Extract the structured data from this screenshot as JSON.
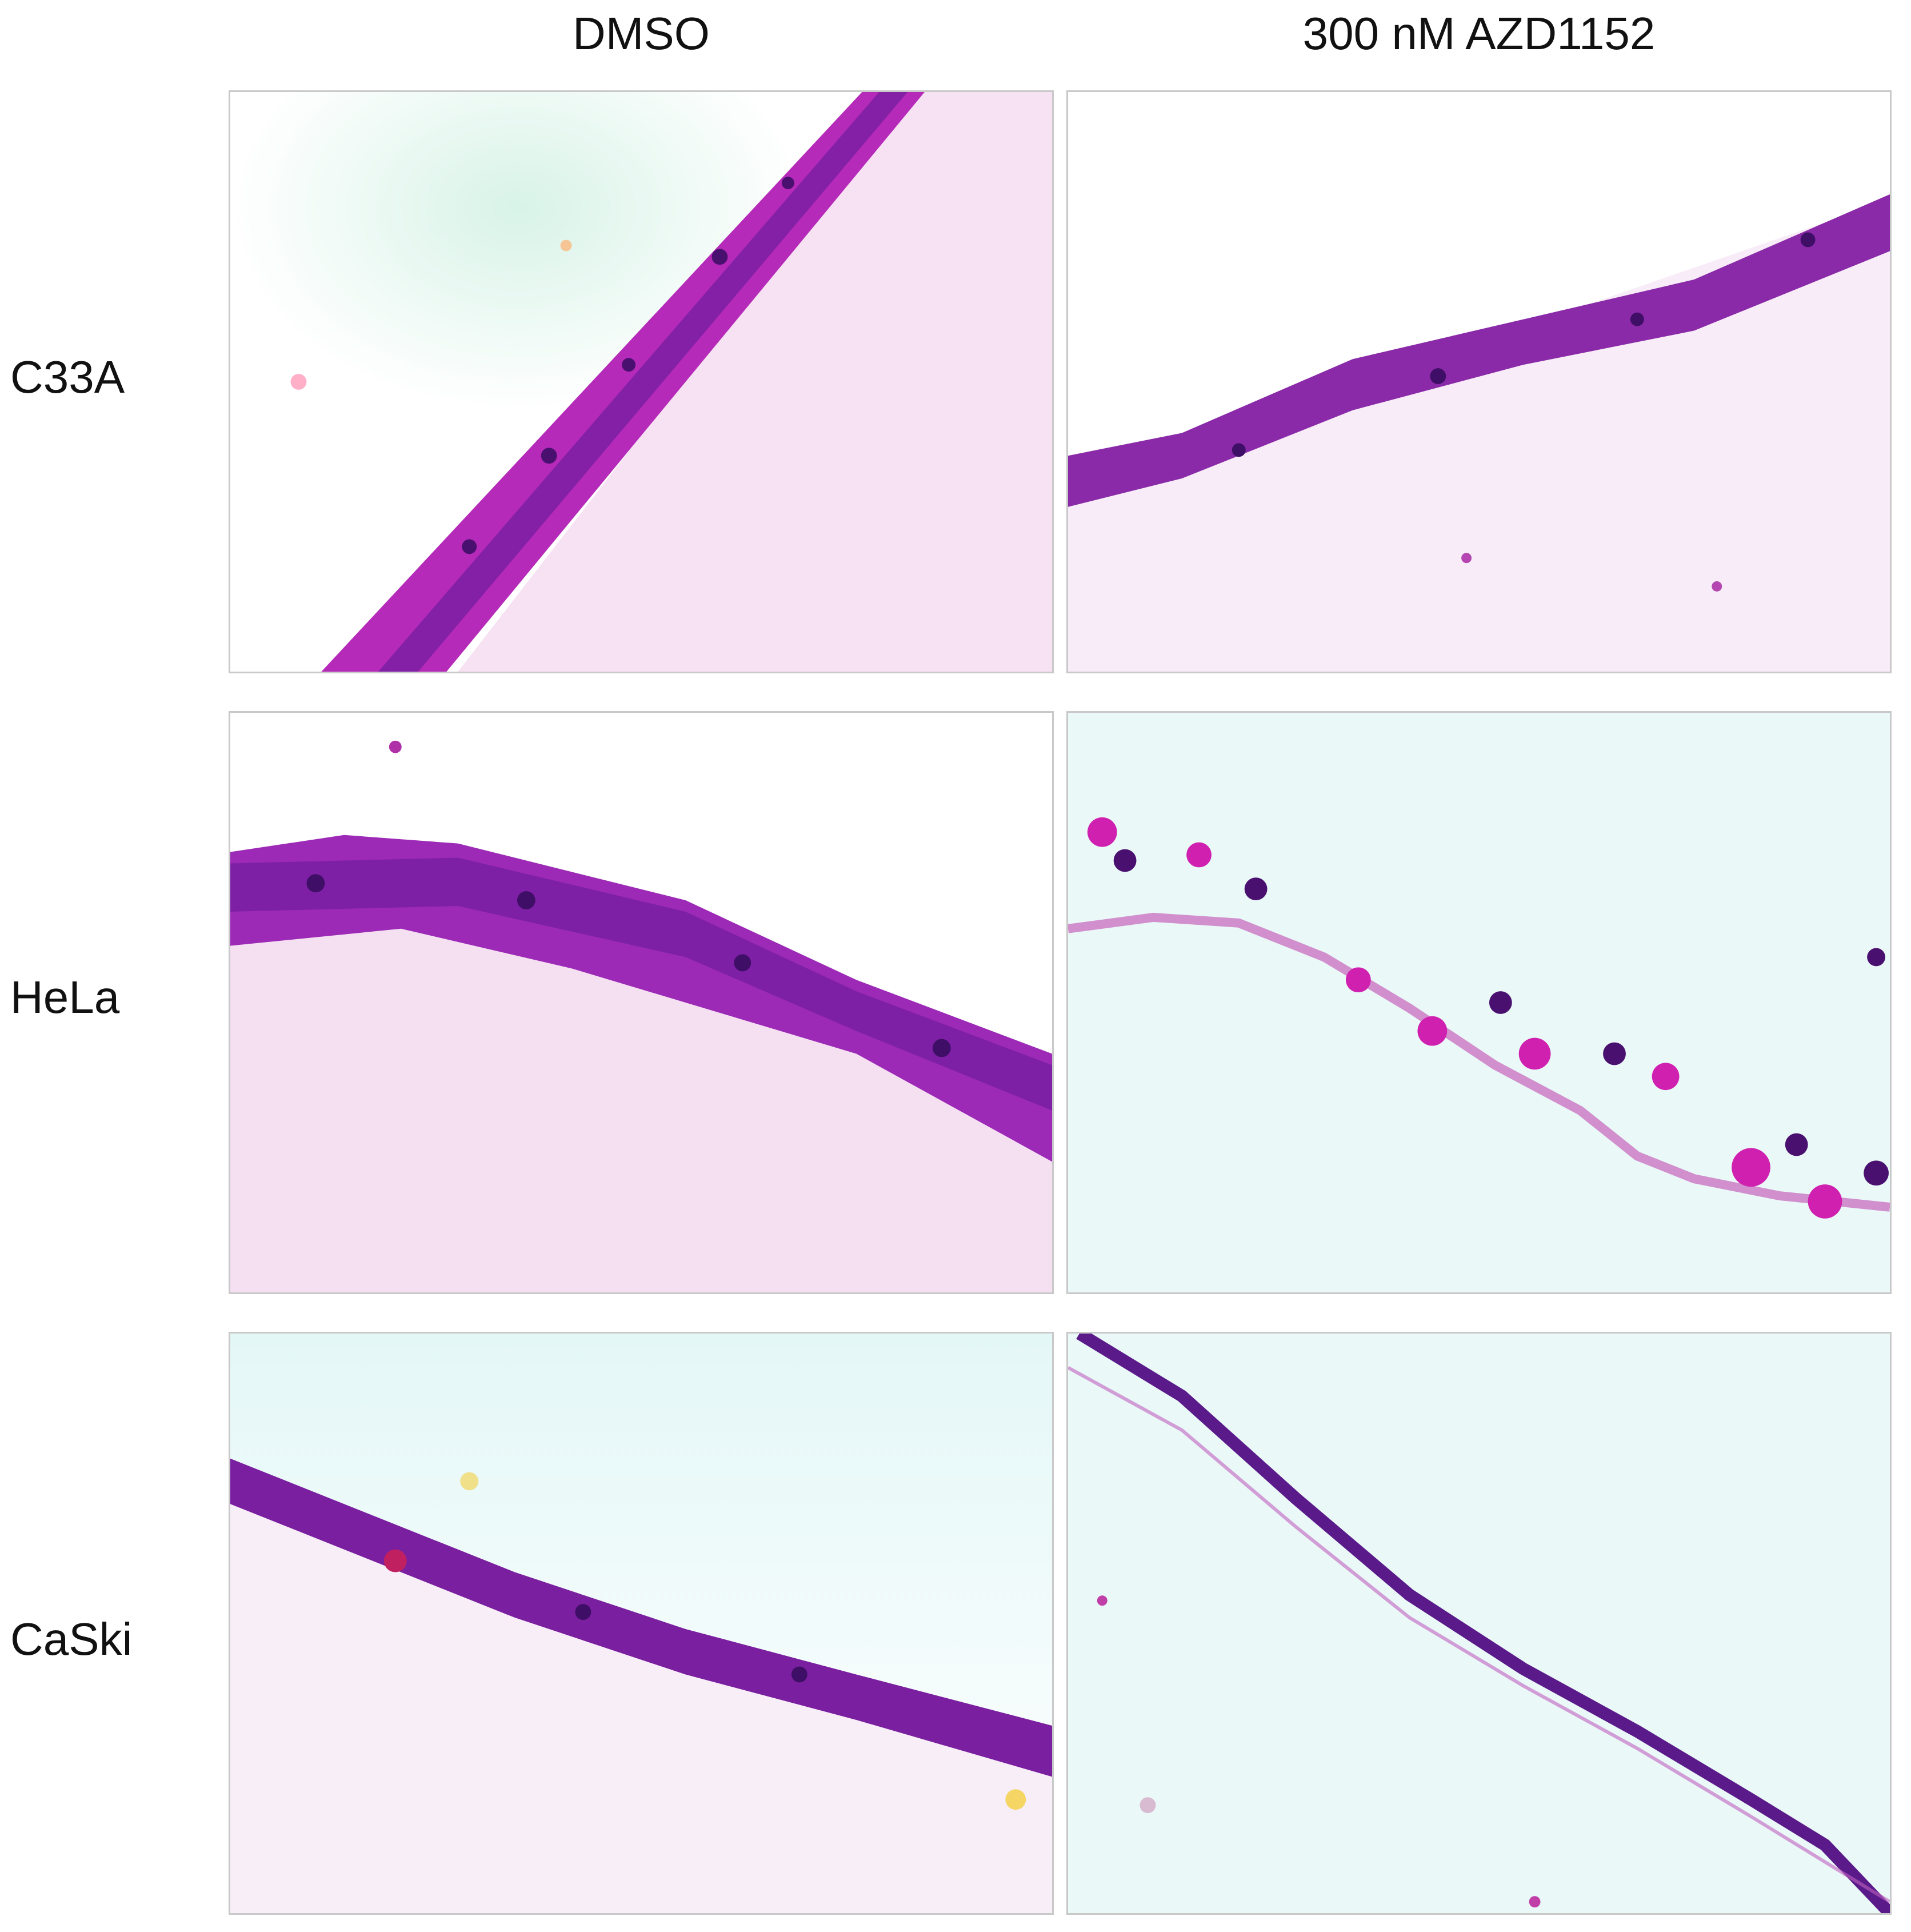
{
  "columns": [
    {
      "label": "DMSO"
    },
    {
      "label": "300 nM AZD1152"
    }
  ],
  "rows": [
    {
      "label": "C33A"
    },
    {
      "label": "HeLa"
    },
    {
      "label": "CaSki"
    }
  ],
  "colors": {
    "tissue_purple": "#6a1a9a",
    "stain_magenta": "#d020b0",
    "matrix_pink": "#f2cdee",
    "background_cyan": "#eaf8f8",
    "background_white": "#ffffff"
  },
  "panels": [
    {
      "row": "C33A",
      "column": "DMSO",
      "subject": "thick diagonal epithelial layer over pink stroma"
    },
    {
      "row": "C33A",
      "column": "300 nM AZD1152",
      "subject": "thin fragmented cell layer"
    },
    {
      "row": "HeLa",
      "column": "DMSO",
      "subject": "thick dense epithelial layer"
    },
    {
      "row": "HeLa",
      "column": "300 nM AZD1152",
      "subject": "scattered dissociated cells"
    },
    {
      "row": "CaSki",
      "column": "DMSO",
      "subject": "multilayer epithelium"
    },
    {
      "row": "CaSki",
      "column": "300 nM AZD1152",
      "subject": "thin single-cell diagonal layer"
    }
  ]
}
